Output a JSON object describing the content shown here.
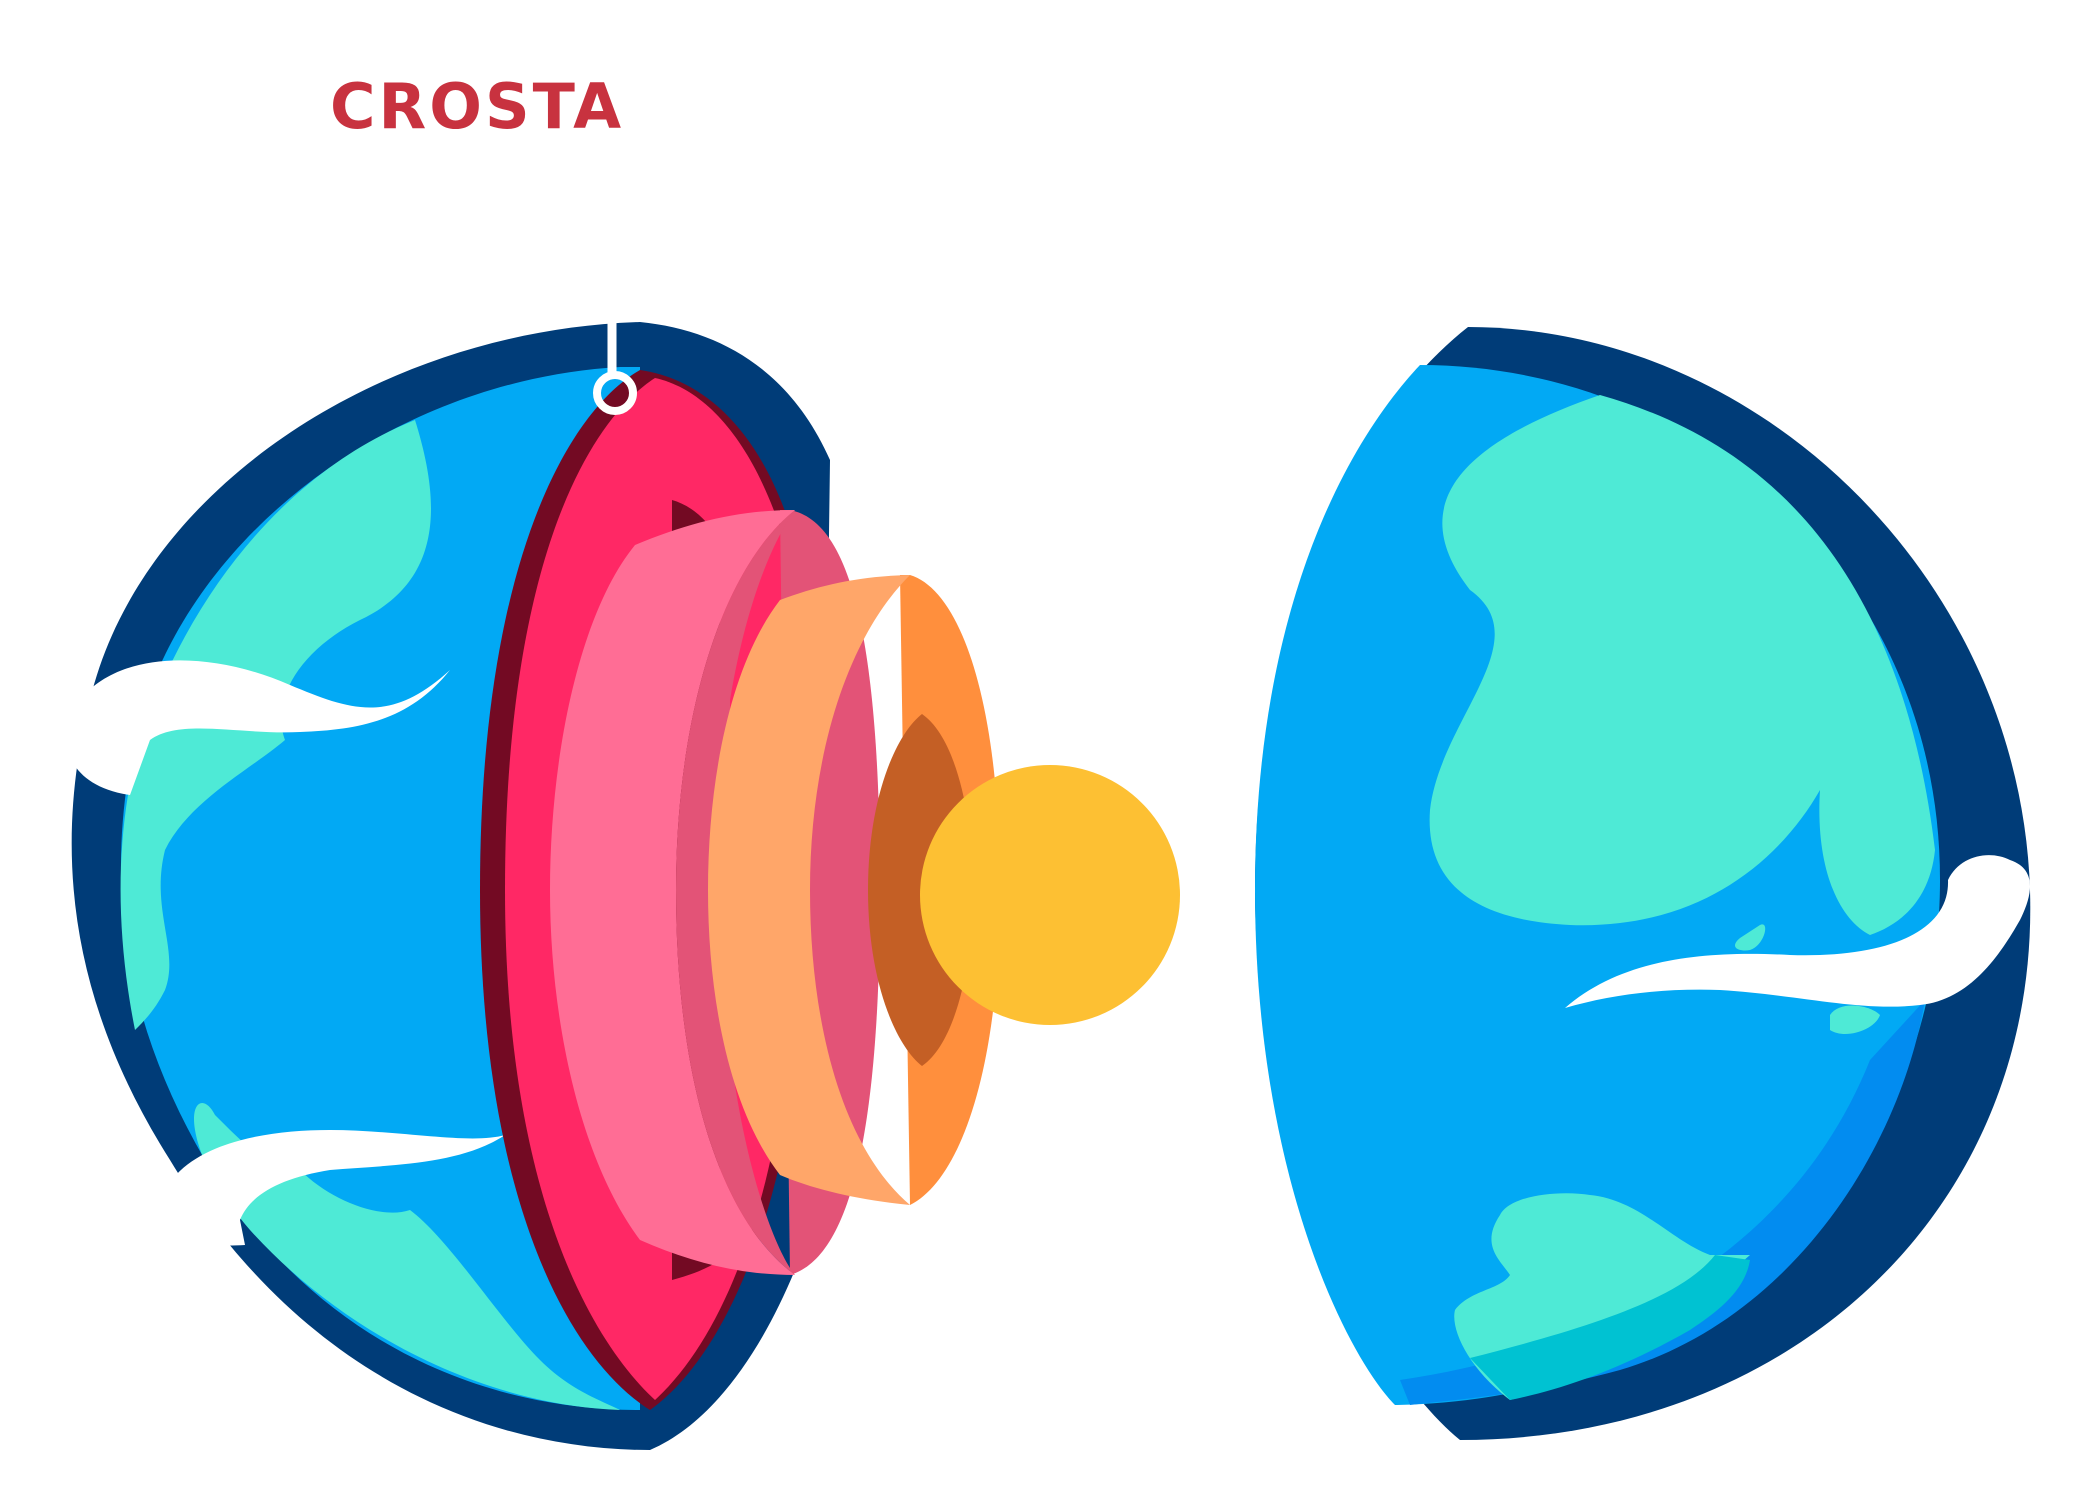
{
  "labels": {
    "crust": "CROSTA"
  },
  "colors": {
    "label": "#c8323f",
    "outline": "#003c78",
    "ocean": "#02a9f4",
    "ocean_deep": "#028cf0",
    "land": "#4eead6",
    "land_teal": "#00c2d2",
    "cloud": "#ffffff",
    "crust_dark": "#730a23",
    "crust": "#ff2865",
    "upper_mantle": "#ff6d95",
    "upper_mantle_side": "#e35377",
    "lower_mantle": "#ffa669",
    "lower_mantle_side": "#ff8f3d",
    "outer_core_shadow": "#c45f25",
    "inner_core": "#fdc033",
    "marker": "#ffffff"
  }
}
